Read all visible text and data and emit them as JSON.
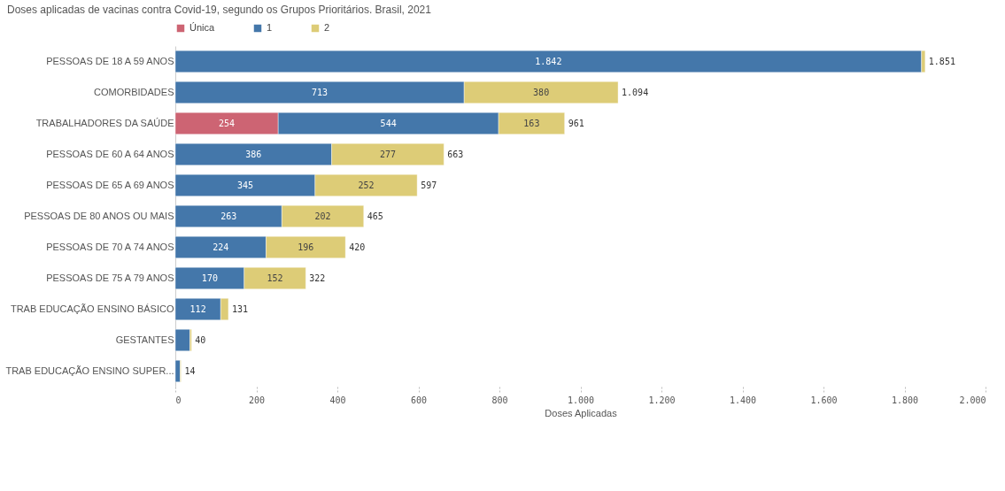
{
  "chart_data": {
    "type": "bar",
    "orientation": "horizontal",
    "stacked": true,
    "title": "Doses aplicadas de vacinas contra Covid-19, segundo os Grupos Prioritários. Brasil, 2021",
    "xlabel": "Doses Aplicadas",
    "categories": [
      "PESSOAS DE 18 A 59 ANOS",
      "COMORBIDADES",
      "TRABALHADORES DA SAÚDE",
      "PESSOAS DE 60 A 64 ANOS",
      "PESSOAS DE 65 A 69 ANOS",
      "PESSOAS DE 80 ANOS OU MAIS",
      "PESSOAS DE 70 A 74 ANOS",
      "PESSOAS DE 75 A 79 ANOS",
      "TRAB EDUCAÇÃO ENSINO BÁSICO",
      "GESTANTES",
      "TRAB EDUCAÇÃO ENSINO SUPER..."
    ],
    "series": [
      {
        "name": "Única",
        "color": "#cd6473",
        "values": [
          null,
          null,
          254,
          null,
          null,
          null,
          null,
          null,
          null,
          null,
          null
        ],
        "value_labels": [
          null,
          null,
          "254",
          null,
          null,
          null,
          null,
          null,
          null,
          null,
          null
        ]
      },
      {
        "name": "1",
        "color": "#4477aa",
        "values": [
          1842,
          713,
          544,
          386,
          345,
          263,
          224,
          170,
          112,
          36,
          12
        ],
        "value_labels": [
          "1.842",
          "713",
          "544",
          "386",
          "345",
          "263",
          "224",
          "170",
          "112",
          null,
          null
        ]
      },
      {
        "name": "2",
        "color": "#ddcc77",
        "values": [
          9,
          380,
          163,
          277,
          252,
          202,
          196,
          152,
          19,
          4,
          2
        ],
        "value_labels": [
          null,
          "380",
          "163",
          "277",
          "252",
          "202",
          "196",
          "152",
          null,
          null,
          null
        ]
      }
    ],
    "totals": [
      "1.851",
      "1.094",
      "961",
      "663",
      "597",
      "465",
      "420",
      "322",
      "131",
      "40",
      "14"
    ],
    "xlim": [
      0,
      2000
    ],
    "xticks": [
      0,
      200,
      400,
      600,
      800,
      {
        "value": 1000,
        "label": "1.000"
      },
      {
        "value": 1200,
        "label": "1.200"
      },
      {
        "value": 1400,
        "label": "1.400"
      },
      {
        "value": 1600,
        "label": "1.600"
      },
      {
        "value": 1800,
        "label": "1.800"
      },
      {
        "value": 2000,
        "label": "2.000"
      }
    ],
    "legend": "top",
    "grid": false
  }
}
